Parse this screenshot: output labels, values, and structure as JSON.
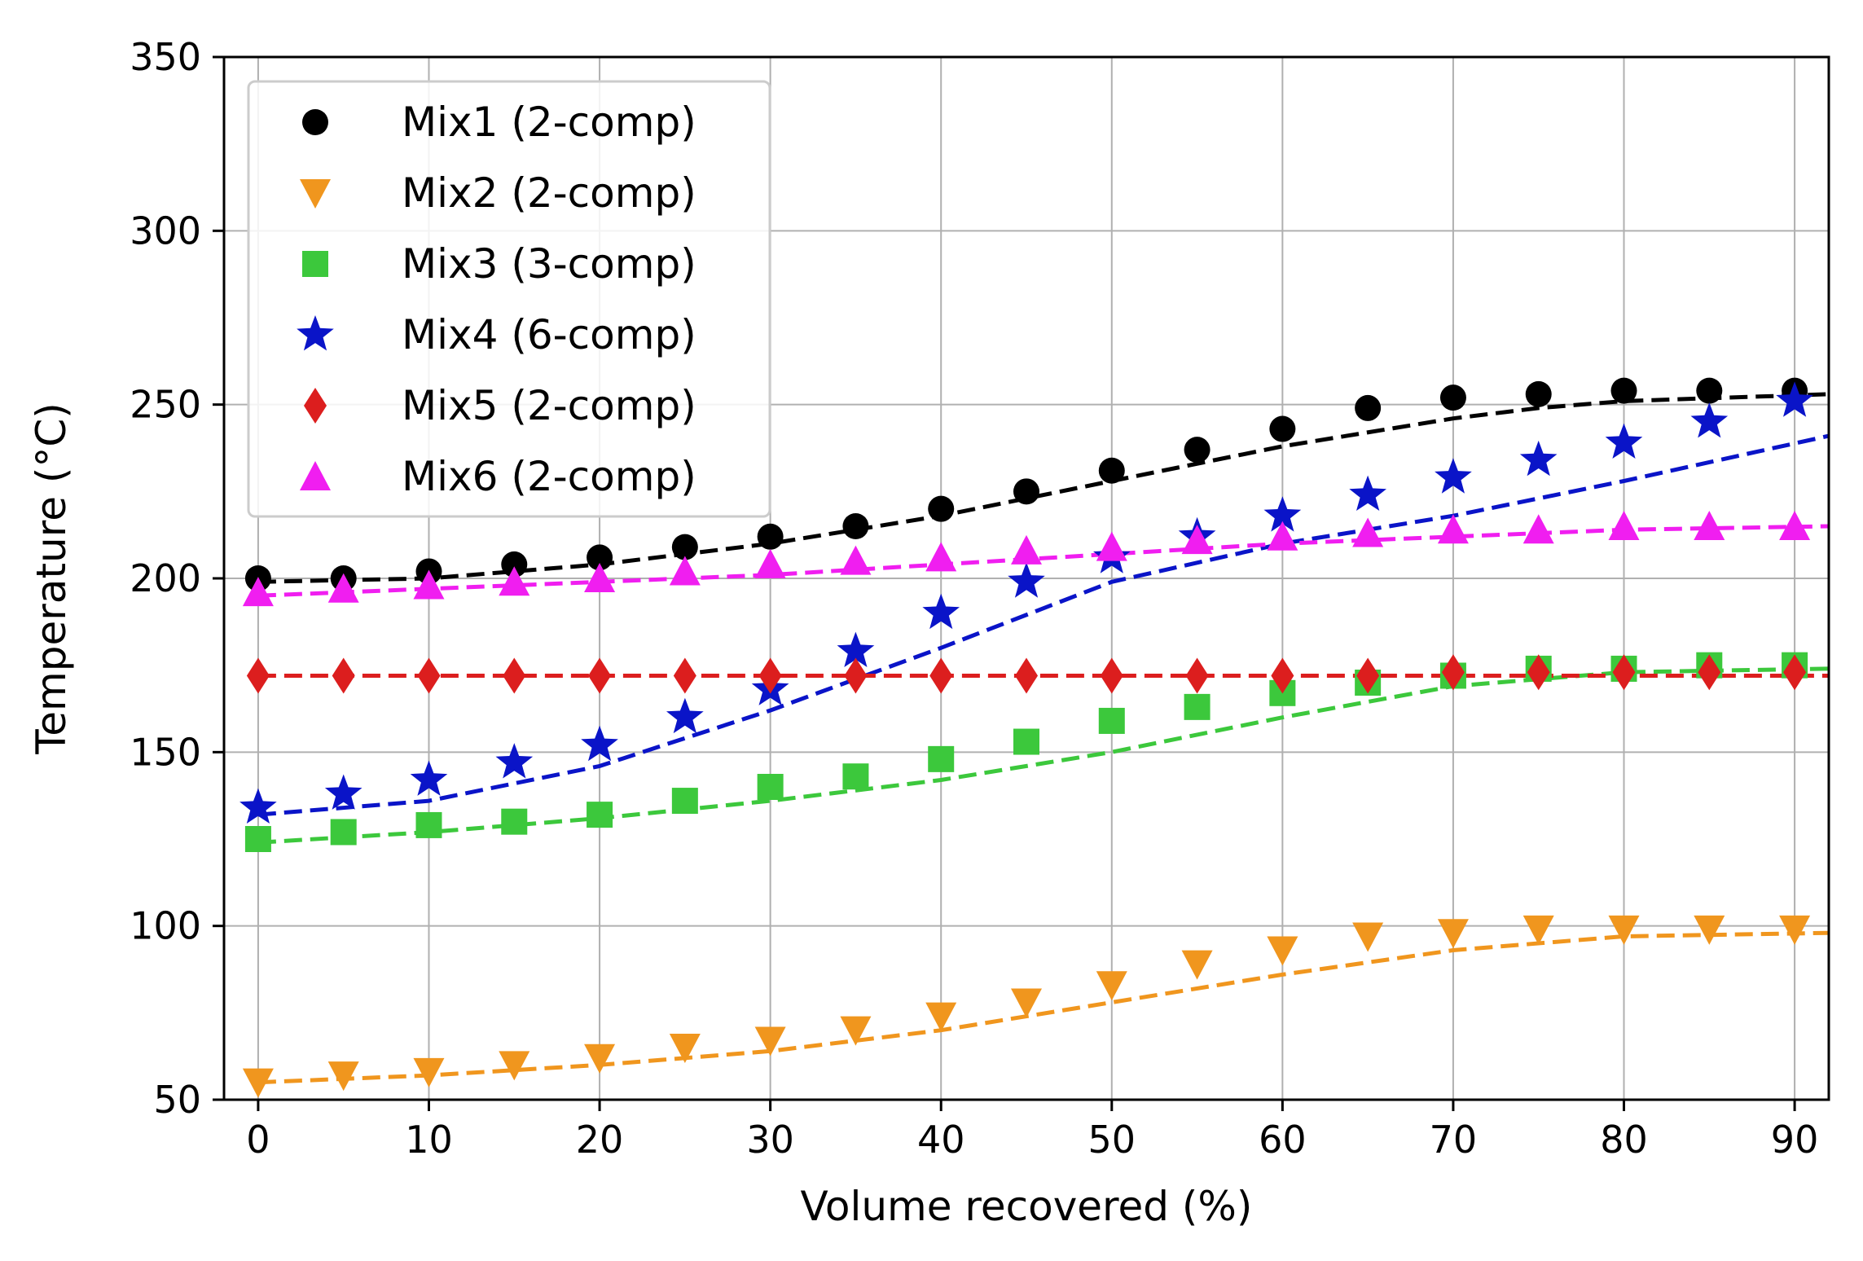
{
  "chart_data": {
    "type": "scatter",
    "title": "",
    "xlabel": "Volume recovered (%)",
    "ylabel": "Temperature (°C)",
    "xlim": [
      -2,
      92
    ],
    "ylim": [
      50,
      350
    ],
    "xticks": [
      0,
      10,
      20,
      30,
      40,
      50,
      60,
      70,
      80,
      90
    ],
    "yticks": [
      50,
      100,
      150,
      200,
      250,
      300,
      350
    ],
    "grid": true,
    "legend_position": "top-left",
    "x": [
      0,
      5,
      10,
      15,
      20,
      25,
      30,
      35,
      40,
      45,
      50,
      55,
      60,
      65,
      70,
      75,
      80,
      85,
      90
    ],
    "series": [
      {
        "name": "Mix1 (2-comp)",
        "marker": "circle",
        "color": "#000000",
        "values": [
          200,
          200,
          202,
          204,
          206,
          209,
          212,
          215,
          220,
          225,
          231,
          237,
          243,
          249,
          252,
          253,
          254,
          254,
          254
        ],
        "fit_x": [
          0,
          10,
          20,
          30,
          40,
          50,
          60,
          70,
          75,
          80,
          92
        ],
        "fit_y": [
          199,
          200,
          204,
          210,
          218,
          228,
          238,
          246,
          249,
          251,
          253
        ]
      },
      {
        "name": "Mix2 (2-comp)",
        "marker": "triangle-down",
        "color": "#f0961e",
        "values": [
          55,
          57,
          58,
          60,
          62,
          65,
          67,
          70,
          74,
          78,
          83,
          89,
          93,
          97,
          98,
          99,
          99,
          99,
          99
        ],
        "fit_x": [
          0,
          10,
          20,
          30,
          40,
          50,
          60,
          70,
          80,
          92
        ],
        "fit_y": [
          55,
          57,
          60,
          64,
          70,
          78,
          86,
          93,
          97,
          98
        ]
      },
      {
        "name": "Mix3 (3-comp)",
        "marker": "square",
        "color": "#3cc83c",
        "values": [
          125,
          127,
          129,
          130,
          132,
          136,
          140,
          143,
          148,
          153,
          159,
          163,
          167,
          170,
          172,
          174,
          174,
          175,
          175
        ],
        "fit_x": [
          0,
          10,
          20,
          30,
          40,
          50,
          60,
          70,
          80,
          92
        ],
        "fit_y": [
          124,
          127,
          131,
          136,
          142,
          150,
          160,
          169,
          173,
          174
        ]
      },
      {
        "name": "Mix4 (6-comp)",
        "marker": "star",
        "color": "#0a14c8",
        "values": [
          134,
          138,
          142,
          147,
          152,
          160,
          168,
          179,
          190,
          199,
          206,
          212,
          218,
          224,
          229,
          234,
          239,
          245,
          251
        ],
        "fit_x": [
          0,
          10,
          20,
          30,
          40,
          50,
          60,
          70,
          80,
          92
        ],
        "fit_y": [
          132,
          136,
          146,
          162,
          180,
          199,
          210,
          218,
          228,
          241
        ]
      },
      {
        "name": "Mix5 (2-comp)",
        "marker": "diamond",
        "color": "#dc1e1e",
        "values": [
          172,
          172,
          172,
          172,
          172,
          172,
          172,
          172,
          172,
          172,
          172,
          172,
          172,
          172,
          173,
          173,
          173,
          173,
          173
        ],
        "fit_x": [
          0,
          92
        ],
        "fit_y": [
          172,
          172
        ]
      },
      {
        "name": "Mix6 (2-comp)",
        "marker": "triangle-up",
        "color": "#f01ef0",
        "values": [
          196,
          197,
          198,
          199,
          200,
          202,
          204,
          205,
          206,
          208,
          209,
          211,
          212,
          213,
          214,
          214,
          215,
          215,
          215
        ],
        "fit_x": [
          0,
          10,
          20,
          30,
          40,
          50,
          60,
          70,
          80,
          92
        ],
        "fit_y": [
          195,
          197,
          199,
          201,
          204,
          207,
          210,
          212,
          214,
          215
        ]
      }
    ]
  }
}
